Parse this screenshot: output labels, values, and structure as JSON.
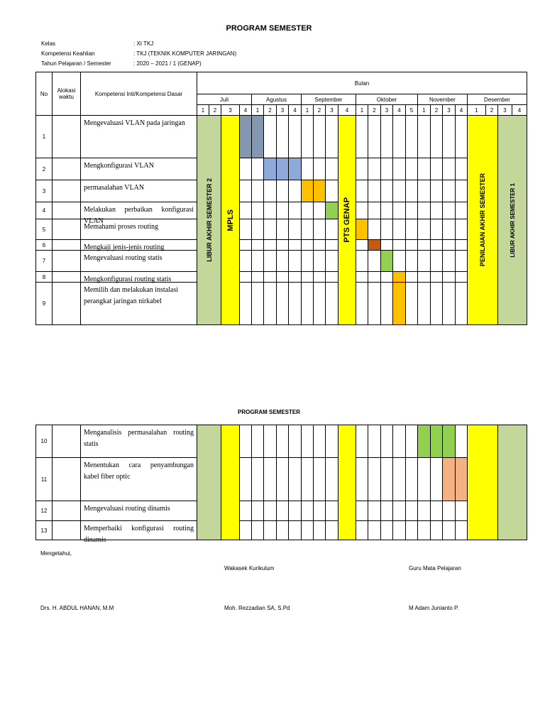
{
  "header": {
    "title": "PROGRAM SEMESTER",
    "info": [
      {
        "label": "Kelas",
        "value": ": XI TKJ"
      },
      {
        "label": "Kompetensi Keahlian",
        "value": ": TKJ (TEKNIK KOMPUTER JARINGAN)"
      },
      {
        "label": "Tahun Pelajaran / Semester",
        "value": ": 2020 – 2021 / 1 (GENAP)"
      }
    ]
  },
  "table": {
    "columns": {
      "no": "No",
      "alokasi": "Alokasi waktu",
      "kompetensi": "Kompetensi Inti/Kompetensi Dasar",
      "bulan": "Bulan"
    },
    "months": [
      {
        "name": "Juli",
        "weeks": [
          1,
          2,
          3,
          4
        ]
      },
      {
        "name": "Agustus",
        "weeks": [
          1,
          2,
          3,
          4
        ]
      },
      {
        "name": "September",
        "weeks": [
          1,
          2,
          3,
          4
        ]
      },
      {
        "name": "Oktober",
        "weeks": [
          1,
          2,
          3,
          4,
          5
        ]
      },
      {
        "name": "November",
        "weeks": [
          1,
          2,
          3,
          4
        ]
      },
      {
        "name": "Desember",
        "weeks": [
          1,
          2,
          3,
          4
        ]
      }
    ],
    "bands": [
      "LIBUR AKHIR SEMESTER 2",
      "MPLS",
      "PTS GENAP",
      "PENILAIAN AKHIR SEMESTER",
      "LIBUR AKHIR SEMESTER 1"
    ],
    "rows": [
      {
        "no": 1,
        "text": "Mengevaluasi VLAN pada jaringan"
      },
      {
        "no": 2,
        "text": "Mengkonfigurasi VLAN"
      },
      {
        "no": 3,
        "text": "permasalahan VLAN"
      },
      {
        "no": 4,
        "text": "Melakukan perbaikan konfigurasi VLAN"
      },
      {
        "no": 5,
        "text": "Memahami proses routing"
      },
      {
        "no": 6,
        "text": "Mengkaji jenis-jenis routing"
      },
      {
        "no": 7,
        "text": "Mengevaluasi routing statis"
      },
      {
        "no": 8,
        "text": "Mengkonfigurasi routing statis"
      },
      {
        "no": 9,
        "text": "Memilih dan melakukan instalasi perangkat jaringan nirkabel"
      }
    ]
  },
  "table2": {
    "title": "PROGRAM SEMESTER",
    "rows": [
      {
        "no": 10,
        "text": "Menganalisis permasalahan routing statis"
      },
      {
        "no": 11,
        "text": "Menentukan cara penyambungan kabel fiber optic"
      },
      {
        "no": 12,
        "text": "Mengevaluasi routing dinamis"
      },
      {
        "no": 13,
        "text": "Memperbaiki konfigurasi routing dinamis"
      }
    ]
  },
  "signatures": {
    "known": "Mengetahui,",
    "wakasek": "Wakasek Kurikulum",
    "guru": "Guru Mata Pelajaran",
    "names": [
      "Drs. H. ABDUL HANAN, M.M",
      "Moh. Rezzadian SA, S.Pd",
      "M Adam Junianto P."
    ]
  }
}
